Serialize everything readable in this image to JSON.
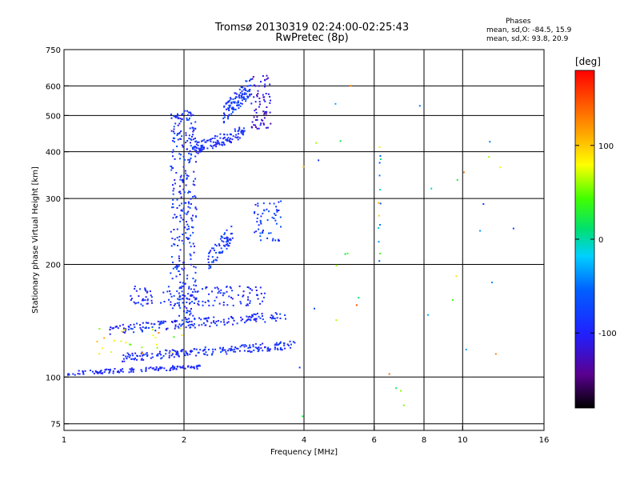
{
  "title": "Tromsø 20130319 02:24:00-02:25:43",
  "subtitle": "RwPretec (8p)",
  "phases_box": {
    "heading": "Phases",
    "line1": "mean, sd,O: -84.5, 15.9",
    "line2": "mean, sd,X:  93.8, 20.9"
  },
  "colorbar": {
    "unit": "[deg]",
    "range": [
      -180,
      180
    ],
    "ticks": [
      {
        "value": 100,
        "label": "100"
      },
      {
        "value": 0,
        "label": "0"
      },
      {
        "value": -100,
        "label": "-100"
      }
    ]
  },
  "chart_data": {
    "type": "scatter",
    "xlabel": "Frequency [MHz]",
    "ylabel": "Stationary phase Virtual Height [km]",
    "x_scale": "log2",
    "y_scale": "log",
    "xlim": [
      1,
      16
    ],
    "ylim": [
      72,
      750
    ],
    "x_ticks": [
      {
        "value": 1,
        "label": "1"
      },
      {
        "value": 2,
        "label": "2"
      },
      {
        "value": 4,
        "label": "4"
      },
      {
        "value": 6,
        "label": "6"
      },
      {
        "value": 8,
        "label": "8"
      },
      {
        "value": 10,
        "label": "10"
      },
      {
        "value": 16,
        "label": "16"
      }
    ],
    "y_ticks": [
      {
        "value": 75,
        "label": "75"
      },
      {
        "value": 100,
        "label": "100"
      },
      {
        "value": 200,
        "label": "200"
      },
      {
        "value": 300,
        "label": "300"
      },
      {
        "value": 400,
        "label": "400"
      },
      {
        "value": 500,
        "label": "500"
      },
      {
        "value": 600,
        "label": "600"
      },
      {
        "value": 750,
        "label": "750"
      }
    ],
    "grid": true,
    "clusters": [
      {
        "name": "base-trace",
        "f": [
          1.02,
          2.2
        ],
        "h": [
          101,
          108
        ],
        "phase": [
          -110,
          -80
        ],
        "n": 130,
        "dir": 1
      },
      {
        "name": "lower-band",
        "f": [
          1.4,
          3.8
        ],
        "h": [
          110,
          125
        ],
        "phase": [
          -110,
          -70
        ],
        "n": 200,
        "dir": 1
      },
      {
        "name": "mid-band",
        "f": [
          1.3,
          3.6
        ],
        "h": [
          130,
          150
        ],
        "phase": [
          -115,
          -70
        ],
        "n": 180,
        "dir": 1
      },
      {
        "name": "upper-band",
        "f": [
          1.45,
          3.2
        ],
        "h": [
          155,
          175
        ],
        "phase": [
          -115,
          -70
        ],
        "n": 140,
        "dir": 0
      },
      {
        "name": "vertical-2",
        "f": [
          1.85,
          2.15
        ],
        "h": [
          140,
          520
        ],
        "phase": [
          -115,
          -60
        ],
        "n": 330,
        "dir": 0
      },
      {
        "name": "curve-250",
        "f": [
          2.3,
          2.65
        ],
        "h": [
          190,
          260
        ],
        "phase": [
          -110,
          -60
        ],
        "n": 70,
        "dir": 1
      },
      {
        "name": "f2-upper",
        "f": [
          2.1,
          2.85
        ],
        "h": [
          390,
          470
        ],
        "phase": [
          -110,
          -75
        ],
        "n": 120,
        "dir": 1
      },
      {
        "name": "f2-top",
        "f": [
          2.5,
          2.95
        ],
        "h": [
          470,
          640
        ],
        "phase": [
          -105,
          -60
        ],
        "n": 110,
        "dir": 1
      },
      {
        "name": "x-cluster",
        "f": [
          2.95,
          3.3
        ],
        "h": [
          460,
          640
        ],
        "phase": [
          -140,
          -95
        ],
        "n": 70,
        "dir": 0
      },
      {
        "name": "x-mid",
        "f": [
          3.0,
          3.5
        ],
        "h": [
          230,
          300
        ],
        "phase": [
          -100,
          -60
        ],
        "n": 55,
        "dir": 0
      },
      {
        "name": "mixed-low",
        "f": [
          1.2,
          2.0
        ],
        "h": [
          115,
          135
        ],
        "phase": [
          40,
          130
        ],
        "n": 25,
        "dir": 0
      },
      {
        "name": "line-6.2",
        "f": [
          6.15,
          6.25
        ],
        "h": [
          200,
          430
        ],
        "phase": [
          -90,
          140
        ],
        "n": 14,
        "dir": 0
      },
      {
        "name": "sparse",
        "f": [
          3.8,
          14.0
        ],
        "h": [
          78,
          620
        ],
        "phase": [
          -100,
          160
        ],
        "n": 35,
        "dir": 0
      }
    ]
  }
}
